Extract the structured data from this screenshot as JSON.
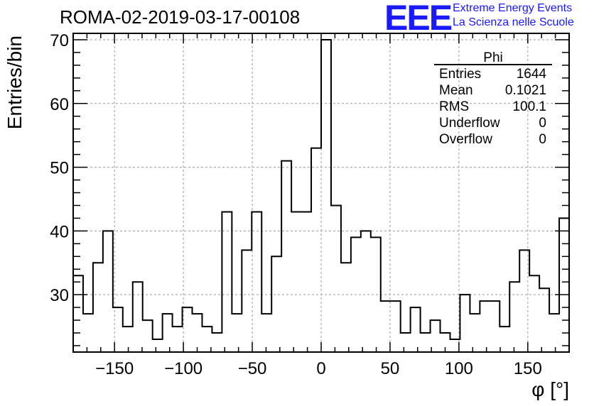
{
  "logo": {
    "mark": "EEE",
    "line1": "Extreme Energy Events",
    "line2": "La Scienza nelle Scuole",
    "color": "#1a1aff"
  },
  "stats": {
    "title": "Phi",
    "rows": [
      {
        "label": "Entries",
        "value": "1644"
      },
      {
        "label": "Mean",
        "value": "0.1021"
      },
      {
        "label": "RMS",
        "value": "100.1"
      },
      {
        "label": "Underflow",
        "value": "0"
      },
      {
        "label": "Overflow",
        "value": "0"
      }
    ]
  },
  "chart_data": {
    "type": "histogram",
    "title": "ROMA-02-2019-03-17-00108",
    "xlabel": "φ [°]",
    "ylabel": "Entries/bin",
    "xlim": [
      -180,
      180
    ],
    "ylim": [
      21,
      71
    ],
    "bin_width": 7.2,
    "xticks": [
      -150,
      -100,
      -50,
      0,
      50,
      100,
      150
    ],
    "yticks": [
      30,
      40,
      50,
      60,
      70
    ],
    "grid": true,
    "values": [
      33,
      27,
      35,
      40,
      28,
      25,
      32,
      26,
      23,
      27,
      25,
      28,
      27,
      25,
      24,
      43,
      27,
      37,
      43,
      27,
      36,
      51,
      43,
      43,
      53,
      70,
      44,
      35,
      39,
      40,
      39,
      29,
      29,
      24,
      28,
      24,
      26,
      24,
      23,
      30,
      27,
      29,
      29,
      25,
      32,
      37,
      33,
      31,
      27,
      42
    ]
  }
}
